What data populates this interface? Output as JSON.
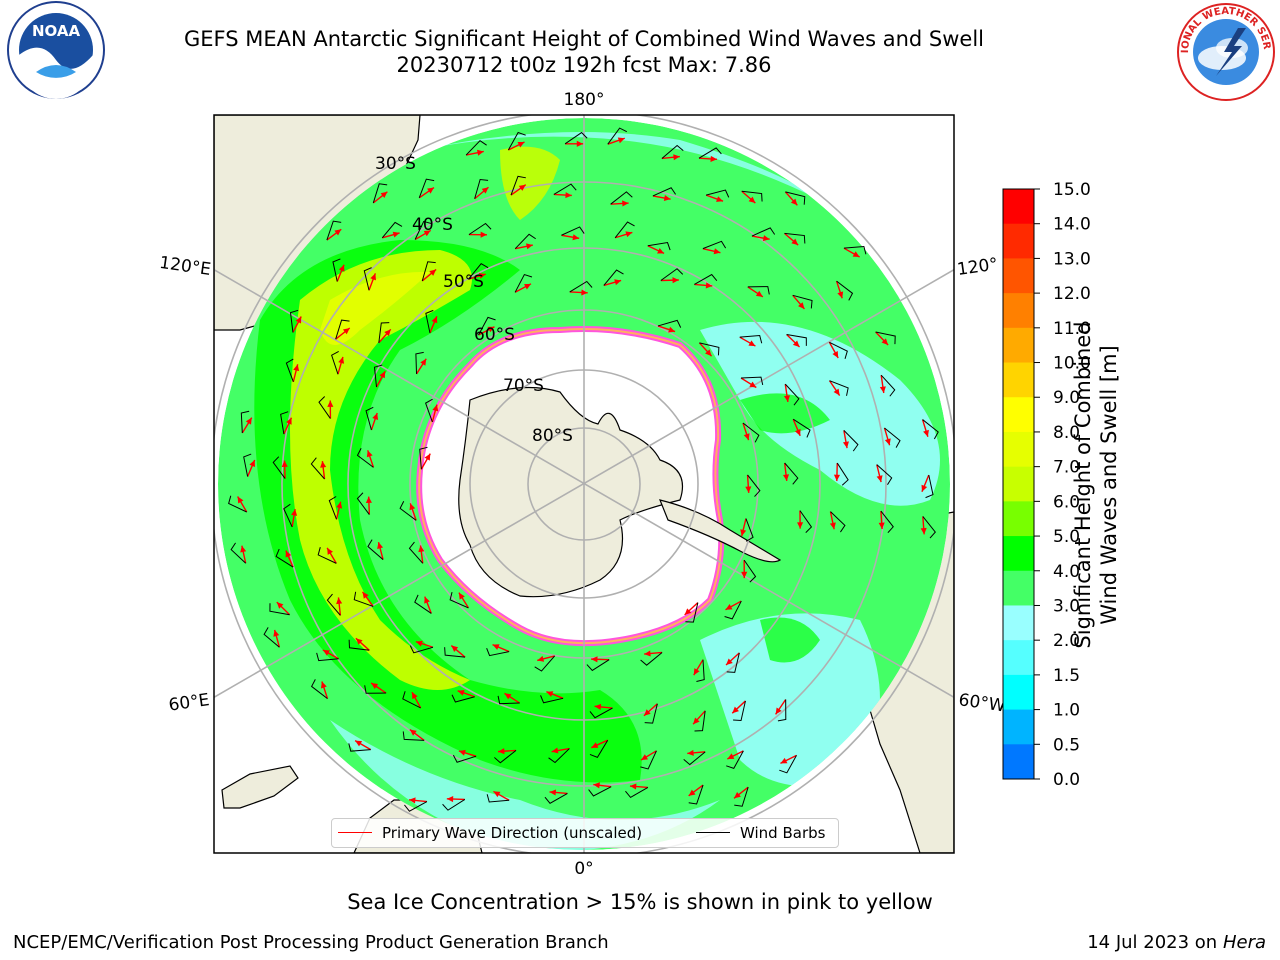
{
  "title": {
    "line1": "GEFS MEAN Antarctic Significant Height of Combined Wind Waves and Swell",
    "line2": "20230712 t00z 192h fcst   Max: 7.86"
  },
  "logos": {
    "left": "NOAA",
    "right": "NATIONAL WEATHER SERVICE"
  },
  "map": {
    "projection": "south-polar-stereographic",
    "longitude_labels": {
      "top": "180°",
      "bottom": "0°",
      "left_upper": "120°E",
      "left_lower": "60°E",
      "right_upper": "120°",
      "right_lower": "60°W"
    },
    "latitude_labels": [
      "30°S",
      "40°S",
      "50°S",
      "60°S",
      "70°S",
      "80°S"
    ],
    "colors": {
      "land": "#eeeddc",
      "grid": "#b0b0b0",
      "ice_edge": "#ff55dd",
      "arrow": "#ff0000",
      "barb": "#000000"
    }
  },
  "legend": {
    "wave_direction": "Primary Wave Direction (unscaled)",
    "wind_barbs": "Wind Barbs"
  },
  "colorbar": {
    "label_line1": "Significant Height of Combined",
    "label_line2": "Wind Waves and Swell [m]",
    "ticks": [
      "15.0",
      "14.0",
      "13.0",
      "12.0",
      "11.0",
      "10.0",
      "9.0",
      "8.0",
      "7.0",
      "6.0",
      "5.0",
      "4.0",
      "3.0",
      "2.0",
      "1.5",
      "1.0",
      "0.5",
      "0.0"
    ],
    "bands": [
      {
        "low": "14.0",
        "high": "15.0",
        "color": "#ff0000"
      },
      {
        "low": "13.0",
        "high": "14.0",
        "color": "#ff2a00"
      },
      {
        "low": "12.0",
        "high": "13.0",
        "color": "#ff5500"
      },
      {
        "low": "11.0",
        "high": "12.0",
        "color": "#ff8000"
      },
      {
        "low": "10.0",
        "high": "11.0",
        "color": "#ffaa00"
      },
      {
        "low": "9.0",
        "high": "10.0",
        "color": "#ffd400"
      },
      {
        "low": "8.0",
        "high": "9.0",
        "color": "#ffff00"
      },
      {
        "low": "7.0",
        "high": "8.0",
        "color": "#e6ff00"
      },
      {
        "low": "6.0",
        "high": "7.0",
        "color": "#c8ff00"
      },
      {
        "low": "5.0",
        "high": "6.0",
        "color": "#78ff00"
      },
      {
        "low": "4.0",
        "high": "5.0",
        "color": "#00ff00"
      },
      {
        "low": "3.0",
        "high": "4.0",
        "color": "#44ff66"
      },
      {
        "low": "2.0",
        "high": "3.0",
        "color": "#99ffff"
      },
      {
        "low": "1.5",
        "high": "2.0",
        "color": "#55ffff"
      },
      {
        "low": "1.0",
        "high": "1.5",
        "color": "#00ffff"
      },
      {
        "low": "0.5",
        "high": "1.0",
        "color": "#00b4ff"
      },
      {
        "low": "0.0",
        "high": "0.5",
        "color": "#0078ff"
      },
      {
        "low": "0.0",
        "high": "0.0",
        "color": "#0000ff"
      }
    ]
  },
  "footer": {
    "note": "Sea Ice Concentration > 15% is shown in pink to yellow",
    "credit_left": "NCEP/EMC/Verification Post Processing Product Generation Branch",
    "credit_right_prefix": "14 Jul 2023 on ",
    "credit_right_host": "Hera"
  }
}
